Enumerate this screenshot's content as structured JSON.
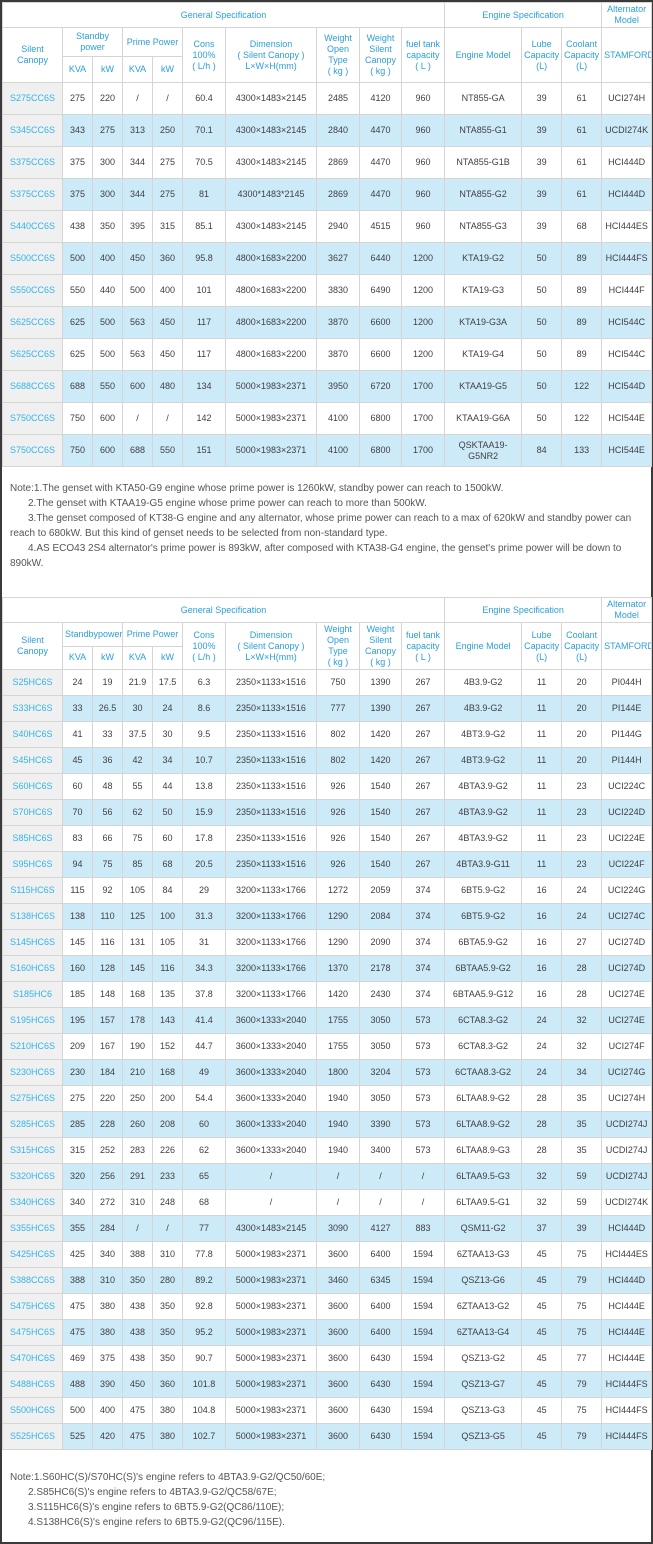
{
  "colors": {
    "header_text": "#2b9fd9",
    "model_link_text": "#2fb5ec",
    "row_stripe": "#cdeaf9",
    "first_column_bg": "#f0f0f0",
    "cell_border": "#d5d5d5",
    "cell_text": "#404040",
    "page_frame": "#3a3a3a"
  },
  "table1": {
    "section_headers": {
      "general": "General Specification",
      "engine": "Engine Specification",
      "alternator": "Alternator\nModel"
    },
    "col_headers": {
      "silent_canopy": "Silent Canopy",
      "standby": "Standby\npower",
      "prime": "Prime Power",
      "kva": "KVA",
      "kw": "kW",
      "cons": "Cons\n100%\n( L/h )",
      "dimension": "Dimension\n( Silent Canopy )\nL×W×H(mm)",
      "weight_open": "Weight\nOpen Type\n( kg )",
      "weight_silent": "Weight\nSilent\nCanopy\n( kg )",
      "fuel": "fuel tank\ncapacity\n( L )",
      "engine_model": "Engine Model",
      "lube": "Lube\nCapacity\n(L)",
      "coolant": "Coolant\nCapacity\n(L)",
      "stamford": "STAMFORD"
    },
    "rows": [
      [
        "S275CC6S",
        "275",
        "220",
        "/",
        "/",
        "60.4",
        "4300×1483×2145",
        "2485",
        "4120",
        "960",
        "NT855-GA",
        "39",
        "61",
        "UCI274H"
      ],
      [
        "S345CC6S",
        "343",
        "275",
        "313",
        "250",
        "70.1",
        "4300×1483×2145",
        "2840",
        "4470",
        "960",
        "NTA855-G1",
        "39",
        "61",
        "UCDI274K"
      ],
      [
        "S375CC6S",
        "375",
        "300",
        "344",
        "275",
        "70.5",
        "4300×1483×2145",
        "2869",
        "4470",
        "960",
        "NTA855-G1B",
        "39",
        "61",
        "HCI444D"
      ],
      [
        "S375CC6S",
        "375",
        "300",
        "344",
        "275",
        "81",
        "4300*1483*2145",
        "2869",
        "4470",
        "960",
        "NTA855-G2",
        "39",
        "61",
        "HCI444D"
      ],
      [
        "S440CC6S",
        "438",
        "350",
        "395",
        "315",
        "85.1",
        "4300×1483×2145",
        "2940",
        "4515",
        "960",
        "NTA855-G3",
        "39",
        "68",
        "HCI444ES"
      ],
      [
        "S500CC6S",
        "500",
        "400",
        "450",
        "360",
        "95.8",
        "4800×1683×2200",
        "3627",
        "6440",
        "1200",
        "KTA19-G2",
        "50",
        "89",
        "HCI444FS"
      ],
      [
        "S550CC6S",
        "550",
        "440",
        "500",
        "400",
        "101",
        "4800×1683×2200",
        "3830",
        "6490",
        "1200",
        "KTA19-G3",
        "50",
        "89",
        "HCI444F"
      ],
      [
        "S625CC6S",
        "625",
        "500",
        "563",
        "450",
        "117",
        "4800×1683×2200",
        "3870",
        "6600",
        "1200",
        "KTA19-G3A",
        "50",
        "89",
        "HCI544C"
      ],
      [
        "S625CC6S",
        "625",
        "500",
        "563",
        "450",
        "117",
        "4800×1683×2200",
        "3870",
        "6600",
        "1200",
        "KTA19-G4",
        "50",
        "89",
        "HCI544C"
      ],
      [
        "S688CC6S",
        "688",
        "550",
        "600",
        "480",
        "134",
        "5000×1983×2371",
        "3950",
        "6720",
        "1700",
        "KTAA19-G5",
        "50",
        "122",
        "HCI544D"
      ],
      [
        "S750CC6S",
        "750",
        "600",
        "/",
        "/",
        "142",
        "5000×1983×2371",
        "4100",
        "6800",
        "1700",
        "KTAA19-G6A",
        "50",
        "122",
        "HCI544E"
      ],
      [
        "S750CC6S",
        "750",
        "600",
        "688",
        "550",
        "151",
        "5000×1983×2371",
        "4100",
        "6800",
        "1700",
        "QSKTAA19-G5NR2",
        "84",
        "133",
        "HCI544E"
      ]
    ]
  },
  "notes_table1": [
    "Note:1.The genset with KTA50-G9 engine whose prime power is 1260kW, standby power can reach to 1500kW.",
    "2.The genset with KTAA19-G5 engine whose prime power can reach to more than 500kW.",
    "3.The genset composed of KT38-G engine and any alternator, whose prime power can reach to a max of 620kW and standby power can reach to 680kW. But this kind of genset needs to be selected from non-standard type.",
    "4.AS ECO43 2S4 alternator's prime power is 893kW, after composed with KTA38-G4 engine, the genset's prime power will be down to 890kW."
  ],
  "table2": {
    "section_headers": {
      "general": "General Specification",
      "engine": "Engine Specification",
      "alternator": "Alternator\nModel"
    },
    "col_headers": {
      "silent_canopy": "Silent Canopy",
      "standby": "Standbypower",
      "prime": "Prime Power",
      "kva": "KVA",
      "kw": "kW",
      "cons": "Cons\n100%\n( L/h )",
      "dimension": "Dimension\n( Silent Canopy )\nL×W×H(mm)",
      "weight_open": "Weight\nOpen Type\n( kg )",
      "weight_silent": "Weight\nSilent\nCanopy\n( kg )",
      "fuel": "fuel tank\ncapacity\n( L )",
      "engine_model": "Engine Model",
      "lube": "Lube\nCapacity\n(L)",
      "coolant": "Coolant\nCapacity\n(L)",
      "stamford": "STAMFORD"
    },
    "rows": [
      [
        "S25HC6S",
        "24",
        "19",
        "21.9",
        "17.5",
        "6.3",
        "2350×1133×1516",
        "750",
        "1390",
        "267",
        "4B3.9-G2",
        "11",
        "20",
        "PI044H"
      ],
      [
        "S33HC6S",
        "33",
        "26.5",
        "30",
        "24",
        "8.6",
        "2350×1133×1516",
        "777",
        "1390",
        "267",
        "4B3.9-G2",
        "11",
        "20",
        "PI144E"
      ],
      [
        "S40HC6S",
        "41",
        "33",
        "37.5",
        "30",
        "9.5",
        "2350×1133×1516",
        "802",
        "1420",
        "267",
        "4BT3.9-G2",
        "11",
        "20",
        "PI144G"
      ],
      [
        "S45HC6S",
        "45",
        "36",
        "42",
        "34",
        "10.7",
        "2350×1133×1516",
        "802",
        "1420",
        "267",
        "4BT3.9-G2",
        "11",
        "20",
        "PI144H"
      ],
      [
        "S60HC6S",
        "60",
        "48",
        "55",
        "44",
        "13.8",
        "2350×1133×1516",
        "926",
        "1540",
        "267",
        "4BTA3.9-G2",
        "11",
        "23",
        "UCI224C"
      ],
      [
        "S70HC6S",
        "70",
        "56",
        "62",
        "50",
        "15.9",
        "2350×1133×1516",
        "926",
        "1540",
        "267",
        "4BTA3.9-G2",
        "11",
        "23",
        "UCI224D"
      ],
      [
        "S85HC6S",
        "83",
        "66",
        "75",
        "60",
        "17.8",
        "2350×1133×1516",
        "926",
        "1540",
        "267",
        "4BTA3.9-G2",
        "11",
        "23",
        "UCI224E"
      ],
      [
        "S95HC6S",
        "94",
        "75",
        "85",
        "68",
        "20.5",
        "2350×1133×1516",
        "926",
        "1540",
        "267",
        "4BTA3.9-G11",
        "11",
        "23",
        "UCI224F"
      ],
      [
        "S115HC6S",
        "115",
        "92",
        "105",
        "84",
        "29",
        "3200×1133×1766",
        "1272",
        "2059",
        "374",
        "6BT5.9-G2",
        "16",
        "24",
        "UCI224G"
      ],
      [
        "S138HC6S",
        "138",
        "110",
        "125",
        "100",
        "31.3",
        "3200×1133×1766",
        "1290",
        "2084",
        "374",
        "6BT5.9-G2",
        "16",
        "24",
        "UCI274C"
      ],
      [
        "S145HC6S",
        "145",
        "116",
        "131",
        "105",
        "31",
        "3200×1133×1766",
        "1290",
        "2090",
        "374",
        "6BTA5.9-G2",
        "16",
        "27",
        "UCI274D"
      ],
      [
        "S160HC6S",
        "160",
        "128",
        "145",
        "116",
        "34.3",
        "3200×1133×1766",
        "1370",
        "2178",
        "374",
        "6BTAA5.9-G2",
        "16",
        "28",
        "UCI274D"
      ],
      [
        "S185HC6",
        "185",
        "148",
        "168",
        "135",
        "37.8",
        "3200×1133×1766",
        "1420",
        "2430",
        "374",
        "6BTAA5.9-G12",
        "16",
        "28",
        "UCI274E"
      ],
      [
        "S195HC6S",
        "195",
        "157",
        "178",
        "143",
        "41.4",
        "3600×1333×2040",
        "1755",
        "3050",
        "573",
        "6CTA8.3-G2",
        "24",
        "32",
        "UCI274E"
      ],
      [
        "S210HC6S",
        "209",
        "167",
        "190",
        "152",
        "44.7",
        "3600×1333×2040",
        "1755",
        "3050",
        "573",
        "6CTA8.3-G2",
        "24",
        "32",
        "UCI274F"
      ],
      [
        "S230HC6S",
        "230",
        "184",
        "210",
        "168",
        "49",
        "3600×1333×2040",
        "1800",
        "3204",
        "573",
        "6CTAA8.3-G2",
        "24",
        "34",
        "UCI274G"
      ],
      [
        "S275HC6S",
        "275",
        "220",
        "250",
        "200",
        "54.4",
        "3600×1333×2040",
        "1940",
        "3050",
        "573",
        "6LTAA8.9-G2",
        "28",
        "35",
        "UCI274H"
      ],
      [
        "S285HC6S",
        "285",
        "228",
        "260",
        "208",
        "60",
        "3600×1333×2040",
        "1940",
        "3390",
        "573",
        "6LTAA8.9-G2",
        "28",
        "35",
        "UCDI274J"
      ],
      [
        "S315HC6S",
        "315",
        "252",
        "283",
        "226",
        "62",
        "3600×1333×2040",
        "1940",
        "3400",
        "573",
        "6LTAA8.9-G3",
        "28",
        "35",
        "UCDI274J"
      ],
      [
        "S320HC6S",
        "320",
        "256",
        "291",
        "233",
        "65",
        "/",
        "/",
        "/",
        "/",
        "6LTAA9.5-G3",
        "32",
        "59",
        "UCDI274J"
      ],
      [
        "S340HC6S",
        "340",
        "272",
        "310",
        "248",
        "68",
        "/",
        "/",
        "/",
        "/",
        "6LTAA9.5-G1",
        "32",
        "59",
        "UCDI274K"
      ],
      [
        "S355HC6S",
        "355",
        "284",
        "/",
        "/",
        "77",
        "4300×1483×2145",
        "3090",
        "4127",
        "883",
        "QSM11-G2",
        "37",
        "39",
        "HCI444D"
      ],
      [
        "S425HC6S",
        "425",
        "340",
        "388",
        "310",
        "77.8",
        "5000×1983×2371",
        "3600",
        "6400",
        "1594",
        "6ZTAA13-G3",
        "45",
        "75",
        "HCI444ES"
      ],
      [
        "S388CC6S",
        "388",
        "310",
        "350",
        "280",
        "89.2",
        "5000×1983×2371",
        "3460",
        "6345",
        "1594",
        "QSZ13-G6",
        "45",
        "79",
        "HCI444D"
      ],
      [
        "S475HC6S",
        "475",
        "380",
        "438",
        "350",
        "92.8",
        "5000×1983×2371",
        "3600",
        "6400",
        "1594",
        "6ZTAA13-G2",
        "45",
        "75",
        "HCI444E"
      ],
      [
        "S475HC6S",
        "475",
        "380",
        "438",
        "350",
        "95.2",
        "5000×1983×2371",
        "3600",
        "6400",
        "1594",
        "6ZTAA13-G4",
        "45",
        "75",
        "HCI444E"
      ],
      [
        "S470HC6S",
        "469",
        "375",
        "438",
        "350",
        "90.7",
        "5000×1983×2371",
        "3600",
        "6430",
        "1594",
        "QSZ13-G2",
        "45",
        "77",
        "HCI444E"
      ],
      [
        "S488HC6S",
        "488",
        "390",
        "450",
        "360",
        "101.8",
        "5000×1983×2371",
        "3600",
        "6430",
        "1594",
        "QSZ13-G7",
        "45",
        "79",
        "HCI444FS"
      ],
      [
        "S500HC6S",
        "500",
        "400",
        "475",
        "380",
        "104.8",
        "5000×1983×2371",
        "3600",
        "6430",
        "1594",
        "QSZ13-G3",
        "45",
        "75",
        "HCI444FS"
      ],
      [
        "S525HC6S",
        "525",
        "420",
        "475",
        "380",
        "102.7",
        "5000×1983×2371",
        "3600",
        "6430",
        "1594",
        "QSZ13-G5",
        "45",
        "79",
        "HCI444FS"
      ]
    ]
  },
  "notes_table2": [
    "Note:1.S60HC(S)/S70HC(S)'s engine refers to 4BTA3.9-G2/QC50/60E;",
    "2.S85HC6(S)'s engine refers to 4BTA3.9-G2/QC58/67E;",
    "3.S115HC6(S)'s engine refers to 6BT5.9-G2(QC86/110E);",
    "4.S138HC6(S)'s engine refers to 6BT5.9-G2(QC96/115E)."
  ]
}
